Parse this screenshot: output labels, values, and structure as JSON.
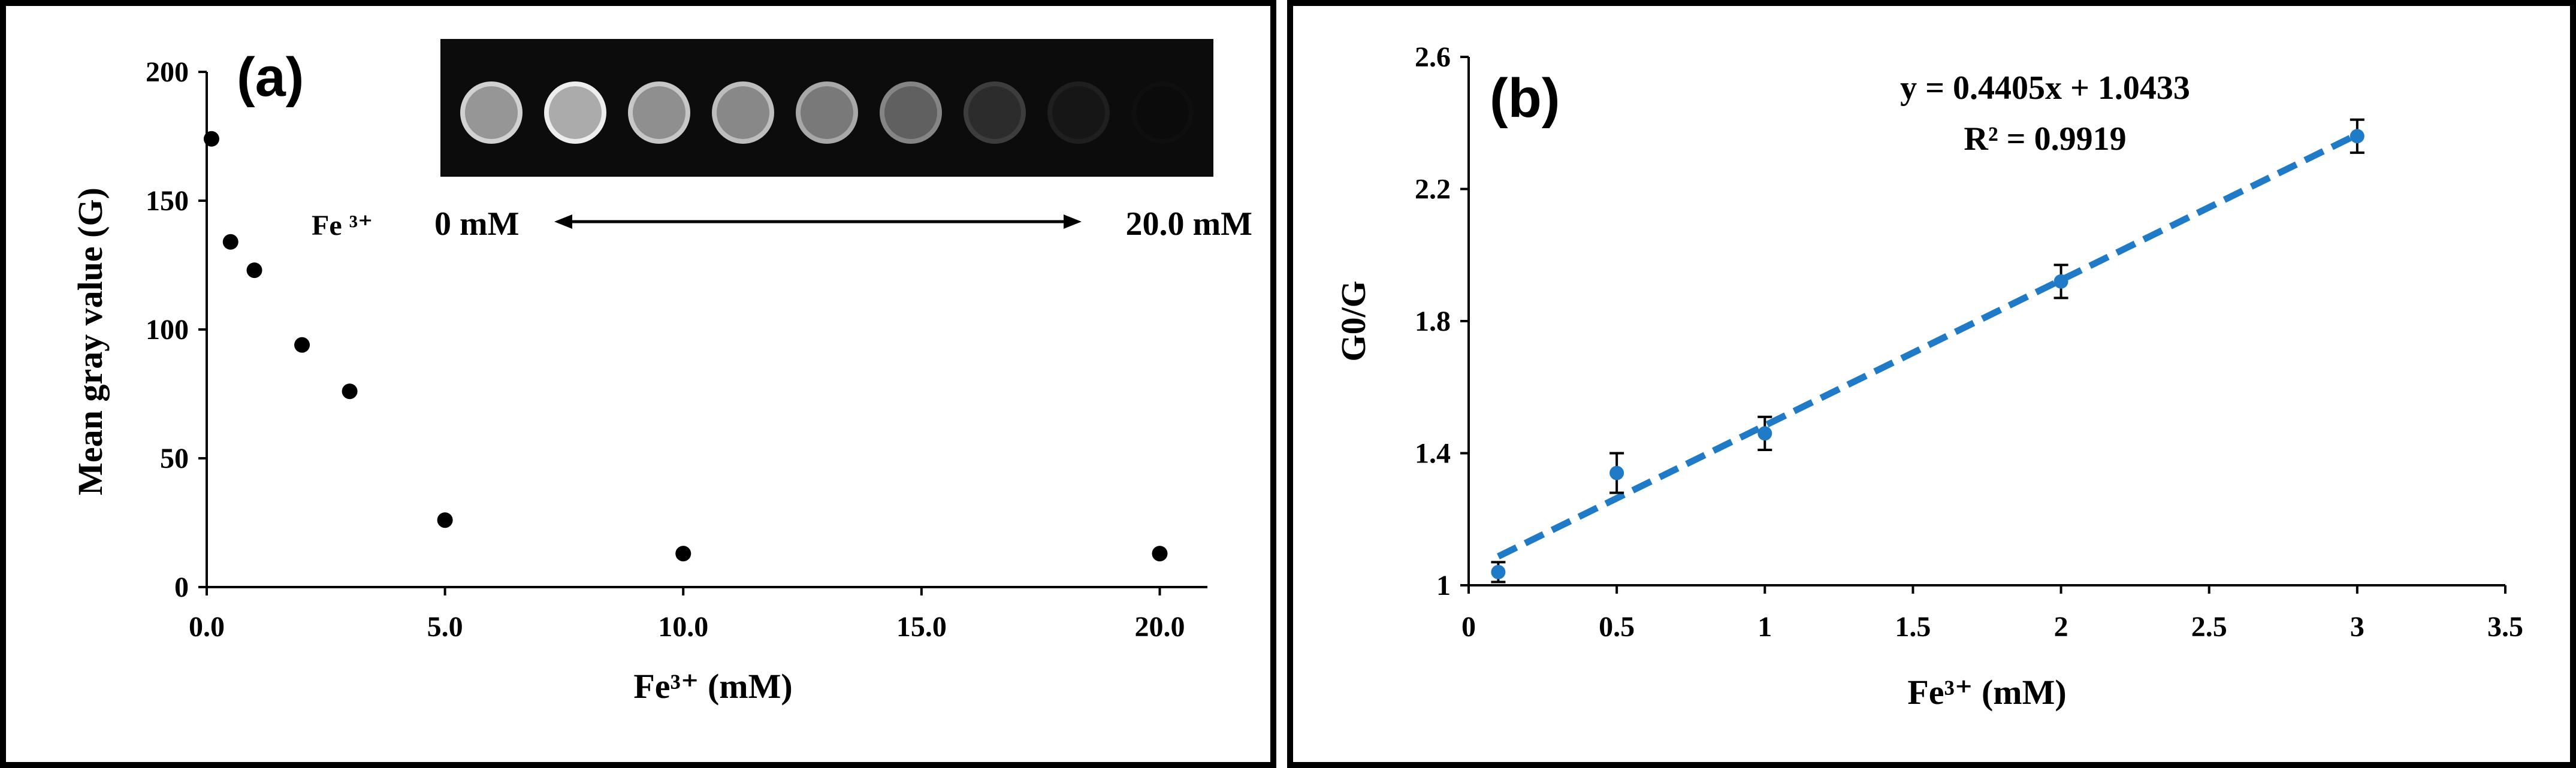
{
  "chart_data": [
    {
      "type": "scatter",
      "panel_label": "(a)",
      "xlabel": "Fe³⁺ (mM)",
      "ylabel": "Mean gray value (G)",
      "xlim": [
        0,
        21
      ],
      "ylim": [
        0,
        200
      ],
      "x_ticks": [
        0,
        5,
        10,
        15,
        20
      ],
      "x_tick_labels": [
        "0.0",
        "5.0",
        "10.0",
        "15.0",
        "20.0"
      ],
      "y_ticks": [
        0,
        50,
        100,
        150,
        200
      ],
      "y_tick_labels": [
        "0",
        "50",
        "100",
        "150",
        "200"
      ],
      "grid": false,
      "series": [
        {
          "x": [
            0.1,
            0.5,
            1,
            2,
            3,
            5,
            10,
            20
          ],
          "y": [
            174,
            134,
            123,
            94,
            76,
            26,
            13,
            13
          ],
          "color": "#000000"
        }
      ],
      "inset": {
        "spot_count": 9,
        "spot_brightness": [
          0.82,
          0.93,
          0.78,
          0.74,
          0.66,
          0.52,
          0.24,
          0.12,
          0.06
        ],
        "ion_label": "Fe ³⁺",
        "range_start": "0 mM",
        "range_end": "20.0 mM"
      }
    },
    {
      "type": "scatter",
      "panel_label": "(b)",
      "xlabel": "Fe³⁺ (mM)",
      "ylabel": "G0/G",
      "xlim": [
        0,
        3.5
      ],
      "ylim": [
        1,
        2.6
      ],
      "x_ticks": [
        0,
        0.5,
        1,
        1.5,
        2,
        2.5,
        3,
        3.5
      ],
      "x_tick_labels": [
        "0",
        "0.5",
        "1",
        "1.5",
        "2",
        "2.5",
        "3",
        "3.5"
      ],
      "y_ticks": [
        1,
        1.4,
        1.8,
        2.2,
        2.6
      ],
      "y_tick_labels": [
        "1",
        "1.4",
        "1.8",
        "2.2",
        "2.6"
      ],
      "grid": false,
      "series": [
        {
          "x": [
            0.1,
            0.5,
            1,
            2,
            3
          ],
          "y": [
            1.04,
            1.34,
            1.46,
            1.92,
            2.36
          ],
          "error": [
            0.03,
            0.06,
            0.05,
            0.05,
            0.05
          ],
          "color": "#1f7bc7"
        }
      ],
      "trendline": {
        "slope": 0.4405,
        "intercept": 1.0433,
        "x_range": [
          0.1,
          3
        ],
        "style": "dashed",
        "color": "#1f7bc7"
      },
      "equation": "y = 0.4405x + 1.0433",
      "r_squared": "R² = 0.9919"
    }
  ]
}
